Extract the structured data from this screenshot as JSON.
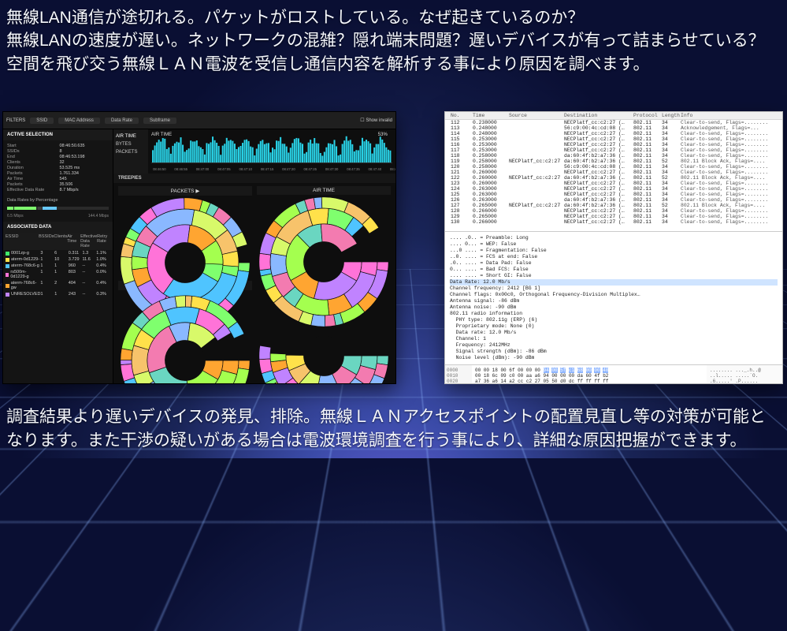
{
  "textTop": "無線LAN通信が途切れる。パケットがロストしている。なぜ起きているのか？\n無線LANの速度が遅い。ネットワークの混雑？隠れ端末問題？遅いデバイスが有って詰まらせている？\n空間を飛び交う無線ＬＡＮ電波を受信し通信内容を解析する事により原因を調べます。",
  "textBottom": "調査結果より遅いデバイスの発見、排除。無線ＬＡＮアクセスポイントの配置見直し等の対策が可能となります。また干渉の疑いがある場合は電波環境調査を行う事により、詳細な原因把握ができます。",
  "darkPanel": {
    "filterLabel": "FILTERS",
    "filterPills": [
      "SSID",
      "MAC Address",
      "Data Rate",
      "Subframe"
    ],
    "showInvalid": "Show invalid",
    "activeSelectionTitle": "ACTIVE SELECTION",
    "stats": [
      [
        "Start",
        "08:46:50.635"
      ],
      [
        "SSIDs",
        "8"
      ],
      [
        "End",
        "08:46:53.198"
      ],
      [
        "Clients",
        "32"
      ],
      [
        "Duration",
        "53.525 ms"
      ],
      [
        "Packets",
        "1.761.334"
      ],
      [
        "Air Time",
        "545"
      ],
      [
        "Packets",
        "35.506"
      ],
      [
        "Effective Data Rate",
        "8.7 Mbp/s"
      ],
      [
        "",
        ""
      ]
    ],
    "dataRatesTitle": "Data Rates by Percentage",
    "dataRateLeft": "6.5 Mbps",
    "dataRateRight": "144.4 Mbps",
    "dataRateBars": [
      {
        "w": 6,
        "c": "#7fff6e"
      },
      {
        "w": 22,
        "c": "#7fff6e"
      },
      {
        "w": 4,
        "c": "#3d3d3d"
      },
      {
        "w": 14,
        "c": "#68c9ff"
      }
    ],
    "assocTitle": "ASSOCIATED DATA",
    "assocHead": [
      "ESSID",
      "BSSIDs",
      "Clients",
      "Air Time",
      "Effective Data Rate",
      "Retry Rate"
    ],
    "assocRows": [
      {
        "c": "#3fe86b",
        "n": "0001zp-g",
        "v": [
          "3",
          "6",
          "0.311",
          "1.3",
          "1.1%"
        ]
      },
      {
        "c": "#ffe14a",
        "n": "aterm-0d1229-",
        "v": [
          "1",
          "10",
          "3.729",
          "11.6",
          "1.0%"
        ]
      },
      {
        "c": "#4fc4ff",
        "n": "aterm-768c6-g",
        "v": [
          "1",
          "1",
          "960",
          "--",
          "0.4%"
        ]
      },
      {
        "c": "#ff73d8",
        "n": "rs500m-0d1229-g",
        "v": [
          "1",
          "1",
          "803",
          "--",
          "0.0%"
        ]
      },
      {
        "c": "#ffa531",
        "n": "aterm-768c6-gw",
        "v": [
          "1",
          "2",
          "404",
          "--",
          "0.4%"
        ]
      },
      {
        "c": "#c083ff",
        "n": "UNRESOLVED",
        "v": [
          "1",
          "1",
          "243",
          "--",
          "0.3%"
        ]
      }
    ],
    "sideTabs": [
      "AIR TIME",
      "BYTES",
      "PACKETS"
    ],
    "stripTitle": "AIR TIME",
    "stripRight": "53%",
    "stripTicks": [
      "08:46:50",
      "08:46:55",
      "08:47:00",
      "08:47:05",
      "08:47:10",
      "08:47:15",
      "08:47:20",
      "08:47:25",
      "08:47:30",
      "08:47:35",
      "08:47:40",
      "08:47:45"
    ],
    "treepieTitle": "TREEPIES",
    "packetsTitle": "PACKETS ▶",
    "airTimeTitle": "AIR TIME",
    "bytesTitle": "BYTES ▶",
    "sunburstColors": [
      "#ffe14a",
      "#7fff6e",
      "#4fc4ff",
      "#ff73d8",
      "#c083ff",
      "#ffa531",
      "#a4ff4f",
      "#6ad6c1",
      "#f37bb0",
      "#8ab8ff",
      "#d8f96a",
      "#f7c36b"
    ]
  },
  "lightPanel": {
    "head": [
      "No.",
      "Time",
      "Source",
      "Destination",
      "Protocol",
      "Length",
      "Info"
    ],
    "rows": [
      {
        "no": "112",
        "t": "0.238000",
        "s": "",
        "d": "NECPlatf_cc:c2:27 (…",
        "p": "802.11",
        "l": "34",
        "i": "Clear-to-send, Flags=........"
      },
      {
        "no": "113",
        "t": "0.248000",
        "s": "",
        "d": "56:c9:00:4c:cd:08 (…",
        "p": "802.11",
        "l": "34",
        "i": "Acknowledgement, Flags=..."
      },
      {
        "no": "114",
        "t": "0.248000",
        "s": "",
        "d": "NECPlatf_cc:c2:27 (…",
        "p": "802.11",
        "l": "34",
        "i": "Clear-to-send, Flags=........"
      },
      {
        "no": "115",
        "t": "0.253000",
        "s": "",
        "d": "NECPlatf_cc:c2:27 (…",
        "p": "802.11",
        "l": "34",
        "i": "Clear-to-send, Flags=........"
      },
      {
        "no": "116",
        "t": "0.253000",
        "s": "",
        "d": "NECPlatf_cc:c2:27 (…",
        "p": "802.11",
        "l": "34",
        "i": "Clear-to-send, Flags=........"
      },
      {
        "no": "117",
        "t": "0.253000",
        "s": "",
        "d": "NECPlatf_cc:c2:27 (…",
        "p": "802.11",
        "l": "34",
        "i": "Clear-to-send, Flags=........"
      },
      {
        "no": "118",
        "t": "0.258000",
        "s": "",
        "d": "da:60:4f:b2:a7:36 (…",
        "p": "802.11",
        "l": "34",
        "i": "Clear-to-send, Flags=........"
      },
      {
        "no": "119",
        "t": "0.258000",
        "s": "NECPlatf_cc:c2:27",
        "d": "da:60:4f:b2:a7:36 (…",
        "p": "802.11",
        "l": "52",
        "i": "802.11 Block Ack, Flags=...."
      },
      {
        "no": "120",
        "t": "0.258000",
        "s": "",
        "d": "56:c9:00:4c:cd:08 (…",
        "p": "802.11",
        "l": "34",
        "i": "Clear-to-send, Flags=........"
      },
      {
        "no": "121",
        "t": "0.260000",
        "s": "",
        "d": "NECPlatf_cc:c2:27 (…",
        "p": "802.11",
        "l": "34",
        "i": "Clear-to-send, Flags=........"
      },
      {
        "no": "122",
        "t": "0.260000",
        "s": "NECPlatf_cc:c2:27 (…",
        "d": "da:60:4f:b2:a7:36 (…",
        "p": "802.11",
        "l": "52",
        "i": "802.11 Block Ack, Flags=...."
      },
      {
        "no": "123",
        "t": "0.260000",
        "s": "",
        "d": "NECPlatf_cc:c2:27 (…",
        "p": "802.11",
        "l": "34",
        "i": "Clear-to-send, Flags=........"
      },
      {
        "no": "124",
        "t": "0.263000",
        "s": "",
        "d": "NECPlatf_cc:c2:27 (…",
        "p": "802.11",
        "l": "34",
        "i": "Clear-to-send, Flags=........"
      },
      {
        "no": "125",
        "t": "0.263000",
        "s": "",
        "d": "NECPlatf_cc:c2:27 (…",
        "p": "802.11",
        "l": "34",
        "i": "Clear-to-send, Flags=........"
      },
      {
        "no": "126",
        "t": "0.263000",
        "s": "",
        "d": "da:60:4f:b2:a7:36 (…",
        "p": "802.11",
        "l": "34",
        "i": "Clear-to-send, Flags=........"
      },
      {
        "no": "127",
        "t": "0.265000",
        "s": "NECPlatf_cc:c2:27 (…",
        "d": "da:60:4f:b2:a7:36 (…",
        "p": "802.11",
        "l": "52",
        "i": "802.11 Block Ack, Flags=...."
      },
      {
        "no": "128",
        "t": "0.266000",
        "s": "",
        "d": "NECPlatf_cc:c2:27 (…",
        "p": "802.11",
        "l": "34",
        "i": "Clear-to-send, Flags=........"
      },
      {
        "no": "129",
        "t": "0.265000",
        "s": "",
        "d": "NECPlatf_cc:c2:27 (…",
        "p": "802.11",
        "l": "34",
        "i": "Clear-to-send, Flags=........"
      },
      {
        "no": "130",
        "t": "0.266000",
        "s": "",
        "d": "NECPlatf_cc:c2:27 (…",
        "p": "802.11",
        "l": "34",
        "i": "Clear-to-send, Flags=........"
      }
    ],
    "details": [
      ".... .0.. = Preamble: Long",
      ".... 0... = WEP: False",
      "...0 .... = Fragmentation: False",
      "..0. .... = FCS at end: False",
      ".0.. .... = Data Pad: False",
      "0... .... = Bad FCS: False",
      ".... .... = Short GI: False"
    ],
    "detailsSelected": "Data Rate: 12.0 Mb/s",
    "detailsAfter": [
      "Channel frequency: 2412 [BG 1]",
      "Channel flags: 0x00c0, Orthogonal Frequency-Division Multiplex…",
      "Antenna signal: -86 dBm",
      "Antenna noise: -90 dBm",
      "802.11 radio information",
      "  PHY type: 802.11g (ERP) (6)",
      "  Proprietary mode: None (0)",
      "  Data rate: 12.0 Mb/s",
      "  Channel: 1",
      "  Frequency: 2412MHz",
      "  Signal strength (dBm): -86 dBm",
      "  Noise level (dBm): -90 dBm"
    ],
    "hex": {
      "addr": [
        "0000",
        "0010",
        "0020"
      ],
      "rows": [
        "00 00 18 00 6f 00 00 00  94 00 5f c1 68 00 00 40",
        "00 18 6c 09 c0 00 aa a6  94 00 00 00 da 60 4f b2",
        "a7 36 a6 14 a2 cc c2 27  05 50 d0 dc ff ff ff ff"
      ],
      "ascii": [
        "........ ..._.h..@",
        "..l..... .....`O.",
        ".6.....'  .P......"
      ],
      "selCols": [
        8,
        15
      ]
    }
  }
}
